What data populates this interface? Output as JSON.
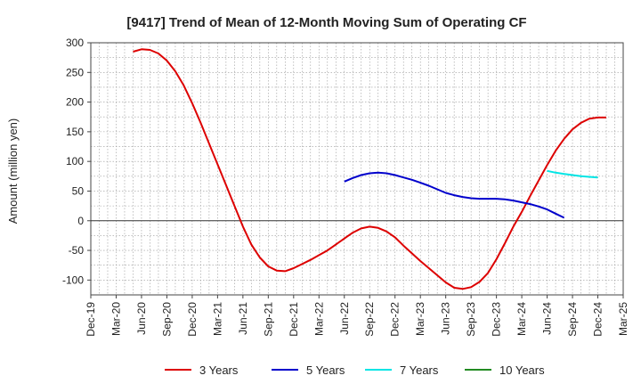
{
  "chart_data": {
    "type": "line",
    "title": "[9417]  Trend of Mean of 12-Month Moving Sum of Operating CF",
    "xlabel": "",
    "ylabel": "Amount (million yen)",
    "ylim": [
      -125,
      300
    ],
    "yticks": [
      300,
      250,
      200,
      150,
      100,
      50,
      0,
      -50,
      -100
    ],
    "ytick_labels": [
      "300",
      "250",
      "200",
      "150",
      "100",
      "50",
      "0",
      "-50",
      "-100"
    ],
    "xticks": [
      "Dec-19",
      "Mar-20",
      "Jun-20",
      "Sep-20",
      "Dec-20",
      "Mar-21",
      "Jun-21",
      "Sep-21",
      "Dec-21",
      "Mar-22",
      "Jun-22",
      "Sep-22",
      "Dec-22",
      "Mar-23",
      "Jun-23",
      "Sep-23",
      "Dec-23",
      "Mar-24",
      "Jun-24",
      "Sep-24",
      "Dec-24",
      "Mar-25"
    ],
    "grid": true,
    "legend_position": "bottom",
    "series": [
      {
        "name": "3 Years",
        "color": "#dd0000",
        "start_month": 5,
        "values": [
          285,
          289,
          288,
          282,
          270,
          252,
          228,
          198,
          165,
          130,
          95,
          60,
          25,
          -10,
          -40,
          -62,
          -77,
          -84,
          -85,
          -80,
          -73,
          -66,
          -58,
          -50,
          -40,
          -30,
          -20,
          -13,
          -10,
          -12,
          -18,
          -28,
          -42,
          -55,
          -68,
          -80,
          -92,
          -104,
          -113,
          -115,
          -112,
          -103,
          -88,
          -65,
          -38,
          -10,
          15,
          42,
          68,
          94,
          118,
          138,
          154,
          165,
          172,
          174,
          174
        ]
      },
      {
        "name": "5 Years",
        "color": "#0000cc",
        "start_month": 30,
        "values": [
          66,
          72,
          77,
          80,
          81,
          80,
          77,
          73,
          69,
          64,
          59,
          53,
          47,
          43,
          40,
          38,
          37,
          37,
          37,
          36,
          34,
          31,
          28,
          24,
          19,
          12,
          5
        ]
      },
      {
        "name": "7 Years",
        "color": "#00e5e5",
        "start_month": 54,
        "values": [
          84,
          81,
          79,
          77,
          75,
          74,
          73
        ]
      },
      {
        "name": "10 Years",
        "color": "#228b22",
        "start_month": 0,
        "values": []
      }
    ]
  }
}
